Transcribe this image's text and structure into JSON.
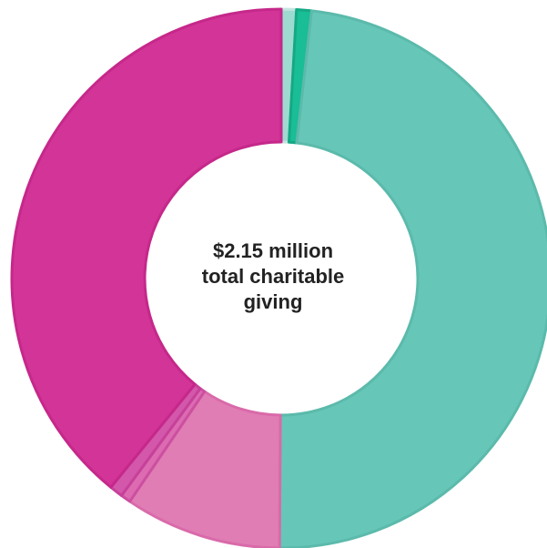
{
  "chart_data": {
    "type": "pie",
    "center_label": [
      "$2.15 million",
      "total charitable",
      "giving"
    ],
    "units": "percent of total",
    "slices": [
      {
        "value": 0.9,
        "color": "#9fdad0"
      },
      {
        "value": 0.9,
        "color": "#19bd96"
      },
      {
        "value": 48.3,
        "color": "#66c6b7"
      },
      {
        "value": 9.4,
        "color": "#e07db4"
      },
      {
        "value": 0.6,
        "color": "#dc6bb1"
      },
      {
        "value": 0.8,
        "color": "#d357aa"
      },
      {
        "value": 39.1,
        "color": "#d33497"
      }
    ],
    "stroke_colors": [
      "#c4e6e0",
      "#14a985",
      "#5bbaab",
      "#d96aaa",
      "#cc4fa0",
      "#c64199",
      "#c5288a"
    ]
  }
}
